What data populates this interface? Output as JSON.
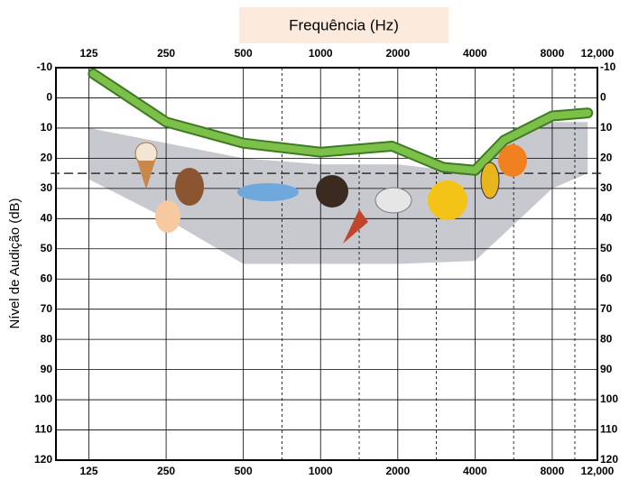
{
  "chart_data": {
    "type": "audiogram",
    "title": "Frequência (Hz)",
    "y_label": "Nível de Audição (dB)",
    "xticks": [
      125,
      250,
      500,
      1000,
      2000,
      4000,
      8000,
      {
        "value": 12000,
        "label": "12,000"
      }
    ],
    "xlim": [
      93,
      12000
    ],
    "xscale": "log",
    "ylim": [
      -10,
      120
    ],
    "yticks": [
      -10,
      0,
      10,
      20,
      30,
      40,
      50,
      60,
      70,
      80,
      90,
      100,
      110,
      120
    ],
    "y_inverted": true,
    "grid": true,
    "reference_line": 25,
    "area": {
      "color": "#c8c9cf",
      "x": [
        125,
        250,
        500,
        1000,
        2000,
        4000,
        6000,
        8000,
        11000
      ],
      "top": [
        10,
        15,
        20,
        22,
        22,
        25,
        12,
        8,
        8
      ],
      "bottom": [
        27,
        40,
        55,
        55,
        55,
        54,
        40,
        30,
        25
      ]
    },
    "curve": {
      "color": "#7cc04a",
      "x": [
        130,
        250,
        500,
        1000,
        1900,
        3000,
        4000,
        5200,
        8000,
        11000
      ],
      "values": [
        -8,
        8,
        15,
        18,
        16,
        23,
        24,
        14,
        6,
        5
      ]
    }
  }
}
